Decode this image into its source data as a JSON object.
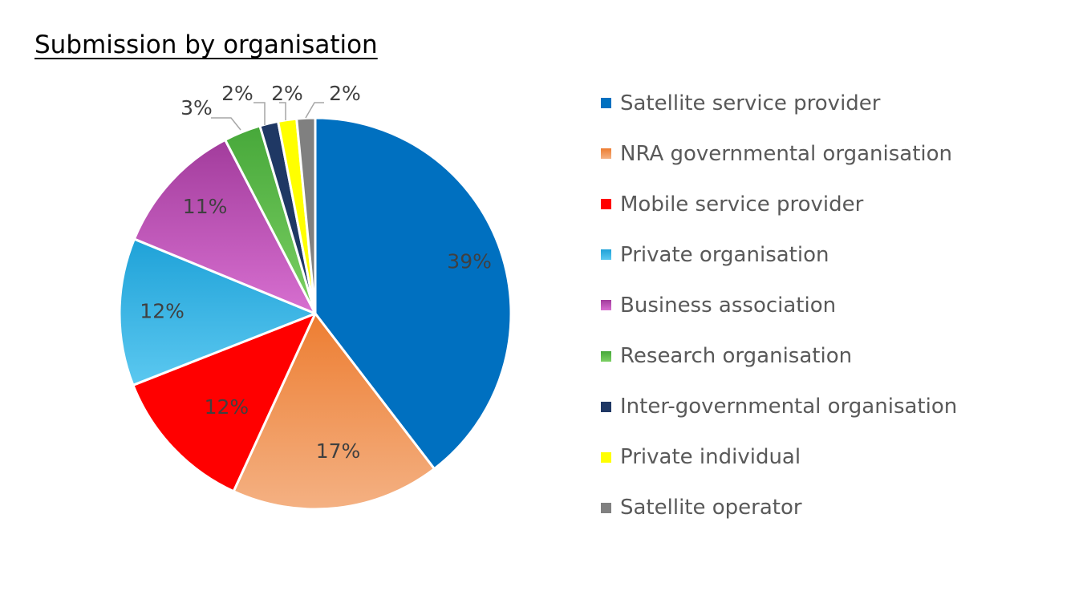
{
  "chart_data": {
    "type": "pie",
    "title": "Submission by organisation",
    "start_angle_deg": 0,
    "direction": "clockwise",
    "slices": [
      {
        "label": "Satellite service provider",
        "value": 39,
        "value_label": "39%",
        "color": "#0070C0",
        "color_top": "#0070C0"
      },
      {
        "label": "NRA governmental organisation",
        "value": 17,
        "value_label": "17%",
        "color": "#F4B183",
        "color_top": "#ED7D31"
      },
      {
        "label": "Mobile service provider",
        "value": 12,
        "value_label": "12%",
        "color": "#FF0000",
        "color_top": "#FF0000"
      },
      {
        "label": "Private organisation",
        "value": 12,
        "value_label": "12%",
        "color": "#5BC8F0",
        "color_top": "#1FA2D8"
      },
      {
        "label": "Business association",
        "value": 11,
        "value_label": "11%",
        "color": "#D76FD0",
        "color_top": "#A23C9C"
      },
      {
        "label": "Research organisation",
        "value": 3,
        "value_label": "3%",
        "color": "#7CD064",
        "color_top": "#47A83A"
      },
      {
        "label": "Inter-governmental organisation",
        "value": 1.5,
        "value_label": "2%",
        "color": "#1F3864",
        "color_top": "#1F3864"
      },
      {
        "label": "Private individual",
        "value": 1.5,
        "value_label": "2%",
        "color": "#FFFF00",
        "color_top": "#FFFF00"
      },
      {
        "label": "Satellite operator",
        "value": 1.5,
        "value_label": "2%",
        "color": "#808080",
        "color_top": "#808080"
      }
    ],
    "legend_position": "right"
  }
}
